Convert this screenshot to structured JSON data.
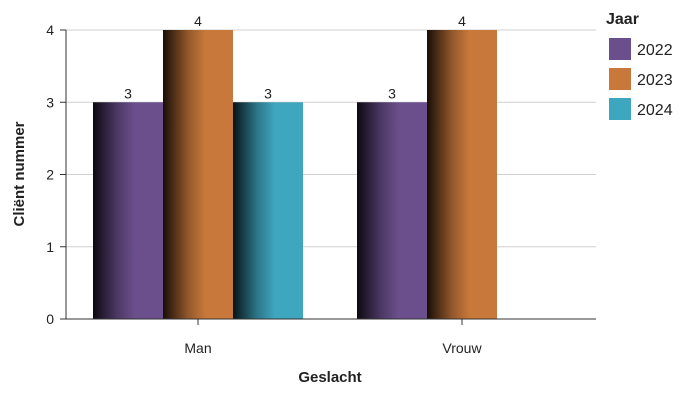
{
  "chart_data": {
    "type": "bar",
    "categories": [
      "Man",
      "Vrouw"
    ],
    "series": [
      {
        "name": "2022",
        "values": [
          3,
          3
        ],
        "color": "#6B4F8C"
      },
      {
        "name": "2023",
        "values": [
          4,
          4
        ],
        "color": "#C8783A"
      },
      {
        "name": "2024",
        "values": [
          3,
          null
        ],
        "color": "#3FA6BF"
      }
    ],
    "xlabel": "Geslacht",
    "ylabel": "Cliënt nummer",
    "ylim": [
      0,
      4
    ],
    "yticks": [
      0,
      1,
      2,
      3,
      4
    ],
    "legend_title": "Jaar",
    "legend_position": "right",
    "grid": true,
    "data_labels": true
  }
}
